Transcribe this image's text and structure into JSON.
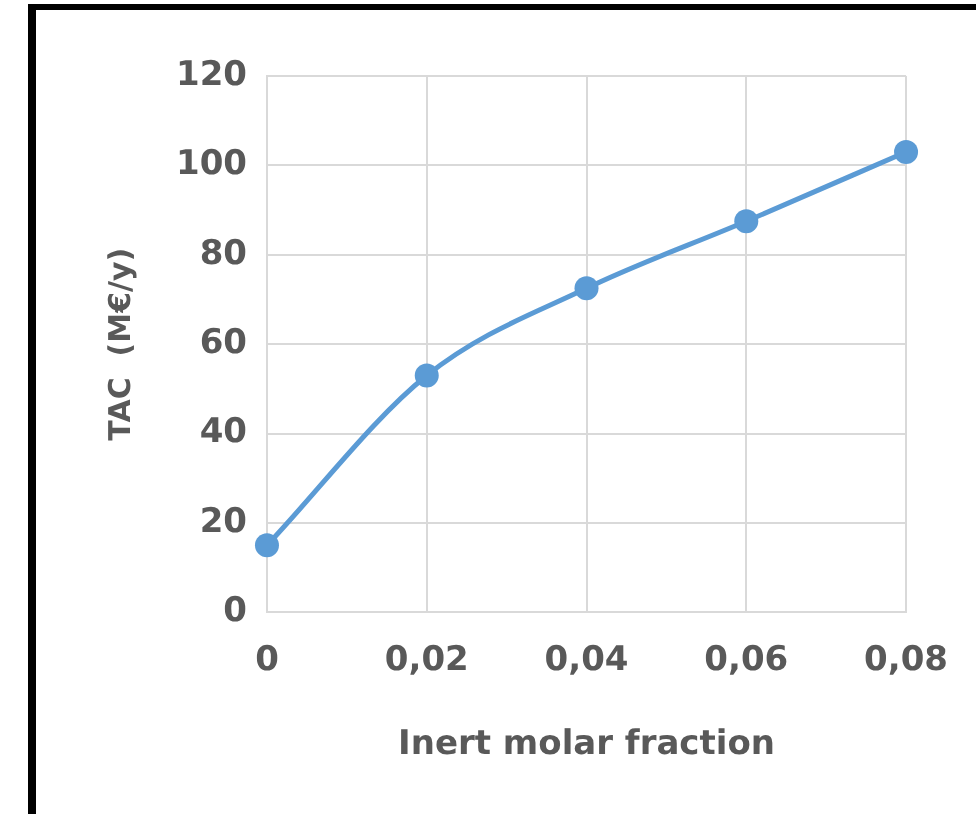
{
  "chart_data": {
    "type": "line",
    "xlabel": "Inert molar fraction",
    "ylabel": "TAC  (M€/y)",
    "x": [
      0,
      0.02,
      0.04,
      0.06,
      0.08
    ],
    "series": [
      {
        "color": "#5b9bd5",
        "values": [
          15,
          53,
          72.5,
          87.5,
          103
        ]
      }
    ],
    "xlim": [
      0,
      0.08
    ],
    "xticks": [
      0,
      {
        "value": 0.02,
        "label": "0,02"
      },
      {
        "value": 0.04,
        "label": "0,04"
      },
      {
        "value": 0.06,
        "label": "0,06"
      },
      {
        "value": 0.08,
        "label": "0,08"
      }
    ],
    "ylim": [
      0,
      120
    ],
    "yticks": [
      0,
      20,
      40,
      60,
      80,
      100,
      120
    ],
    "grid": true,
    "legend": false,
    "marker": "circle",
    "line_style": "solid"
  }
}
